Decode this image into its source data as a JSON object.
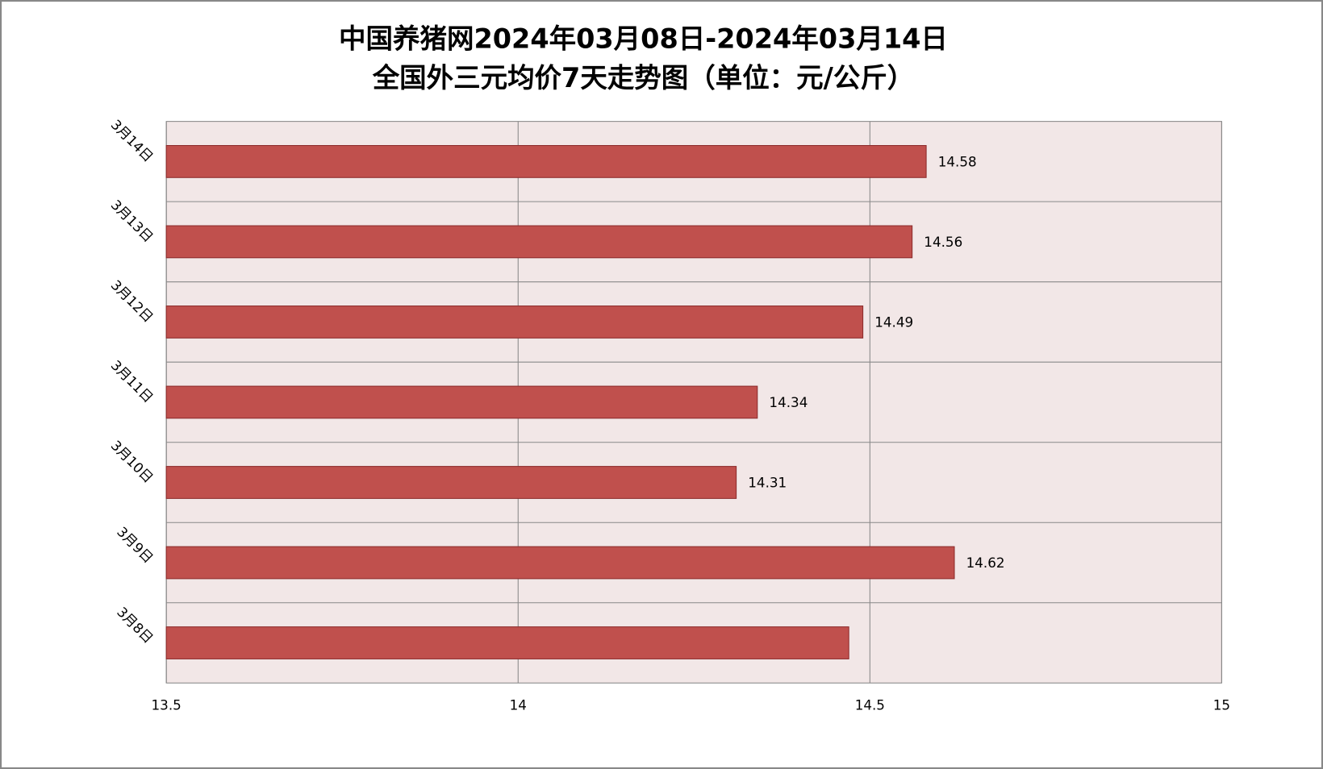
{
  "chart_data": {
    "type": "bar",
    "orientation": "horizontal",
    "title": [
      "中国养猪网2024年03月08日-2024年03月14日",
      "全国外三元均价7天走势图（单位：元/公斤）"
    ],
    "categories": [
      "3月8日",
      "3月9日",
      "3月10日",
      "3月11日",
      "3月12日",
      "3月13日",
      "3月14日"
    ],
    "values": [
      14.47,
      14.62,
      14.31,
      14.34,
      14.49,
      14.56,
      14.58
    ],
    "value_labels": [
      null,
      "14.62",
      "14.31",
      "14.34",
      "14.49",
      "14.56",
      "14.58"
    ],
    "color": "#c0504d",
    "xlim": [
      13.5,
      15
    ],
    "xticks": [
      13.5,
      14,
      14.5,
      15
    ],
    "grid": true
  }
}
